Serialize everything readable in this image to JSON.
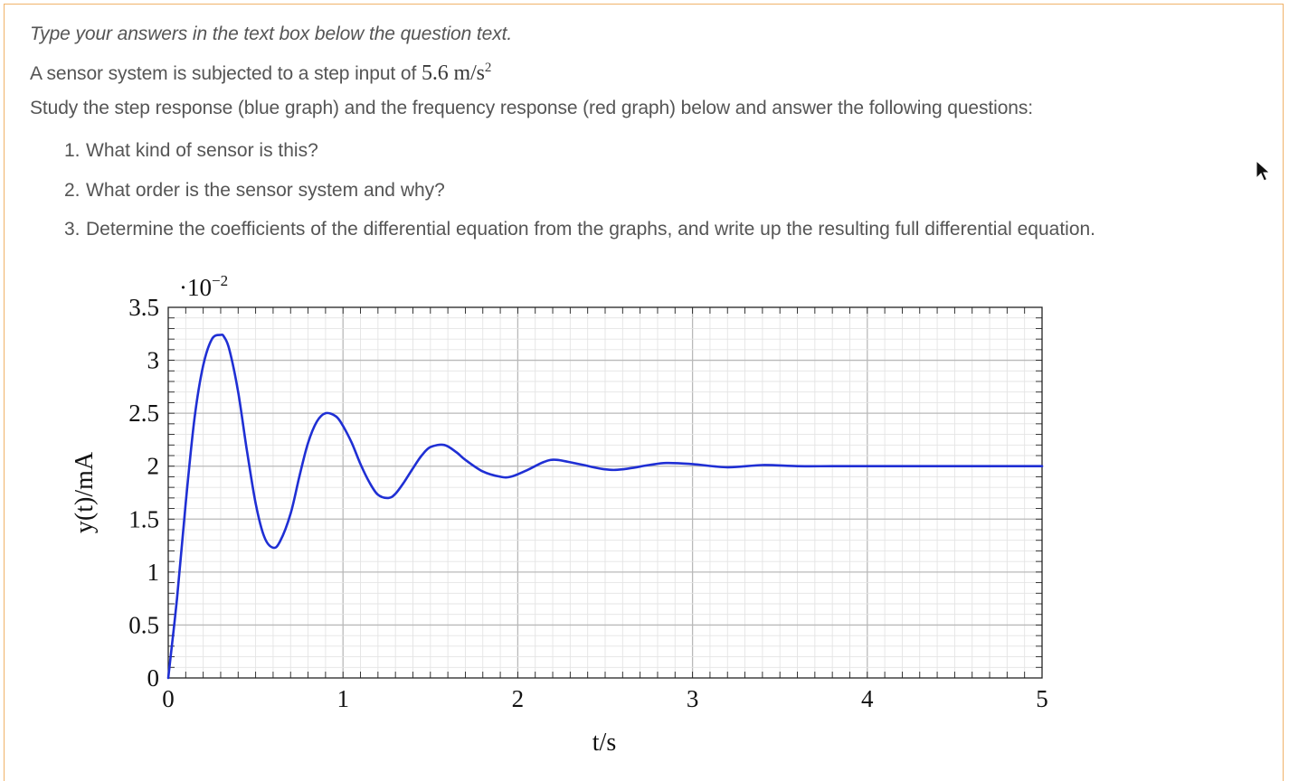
{
  "question": {
    "instruction": "Type your answers in the text box below the question text.",
    "intro_prefix": "A sensor system is subjected to a step input of ",
    "intro_value": "5.6 m/s",
    "intro_exponent": "2",
    "study_text": "Study the step response (blue graph) and the frequency response (red graph) below and answer the following questions:",
    "items": [
      {
        "num": "1.",
        "text": "What kind of sensor is this?"
      },
      {
        "num": "2.",
        "text": "What order is the sensor system and why?"
      },
      {
        "num": "3.",
        "text": "Determine the coefficients of the differential equation from the graphs, and write up the resulting full differential equation."
      }
    ]
  },
  "colors": {
    "border": "#f0b36a",
    "series": "#1f2fd4",
    "grid": "#cfcfcf"
  },
  "icons": {
    "cursor": "mouse-pointer-icon"
  },
  "chart_data": {
    "type": "line",
    "multiplier_label": "·10",
    "multiplier_exponent": "−2",
    "xlabel": "t/s",
    "ylabel": "y(t)/mA",
    "xlim": [
      0,
      5
    ],
    "ylim": [
      0,
      3.5
    ],
    "x_ticks": [
      "0",
      "1",
      "2",
      "3",
      "4",
      "5"
    ],
    "y_ticks": [
      "0",
      "0.5",
      "1",
      "1.5",
      "2",
      "2.5",
      "3",
      "3.5"
    ],
    "grid": true,
    "series": [
      {
        "color": "#1f2fd4",
        "x": [
          0,
          0.05,
          0.1,
          0.15,
          0.2,
          0.25,
          0.3,
          0.32,
          0.35,
          0.4,
          0.45,
          0.5,
          0.55,
          0.6,
          0.64,
          0.7,
          0.75,
          0.8,
          0.85,
          0.9,
          0.96,
          1.0,
          1.05,
          1.1,
          1.15,
          1.2,
          1.26,
          1.3,
          1.35,
          1.4,
          1.45,
          1.5,
          1.58,
          1.65,
          1.7,
          1.8,
          1.9,
          1.96,
          2.05,
          2.15,
          2.22,
          2.35,
          2.5,
          2.6,
          2.75,
          2.85,
          3.0,
          3.2,
          3.4,
          3.6,
          3.8,
          4.0,
          4.3,
          4.6,
          5.0
        ],
        "y": [
          0,
          0.75,
          1.65,
          2.45,
          2.95,
          3.2,
          3.24,
          3.22,
          3.1,
          2.7,
          2.15,
          1.65,
          1.33,
          1.23,
          1.29,
          1.55,
          1.9,
          2.22,
          2.42,
          2.5,
          2.47,
          2.38,
          2.22,
          2.02,
          1.85,
          1.73,
          1.7,
          1.74,
          1.85,
          1.98,
          2.1,
          2.18,
          2.2,
          2.13,
          2.06,
          1.95,
          1.9,
          1.9,
          1.96,
          2.04,
          2.06,
          2.02,
          1.97,
          1.97,
          2.01,
          2.03,
          2.02,
          1.99,
          2.01,
          2.0,
          2.0,
          2.0,
          2.0,
          2.0,
          2.0
        ]
      }
    ]
  }
}
